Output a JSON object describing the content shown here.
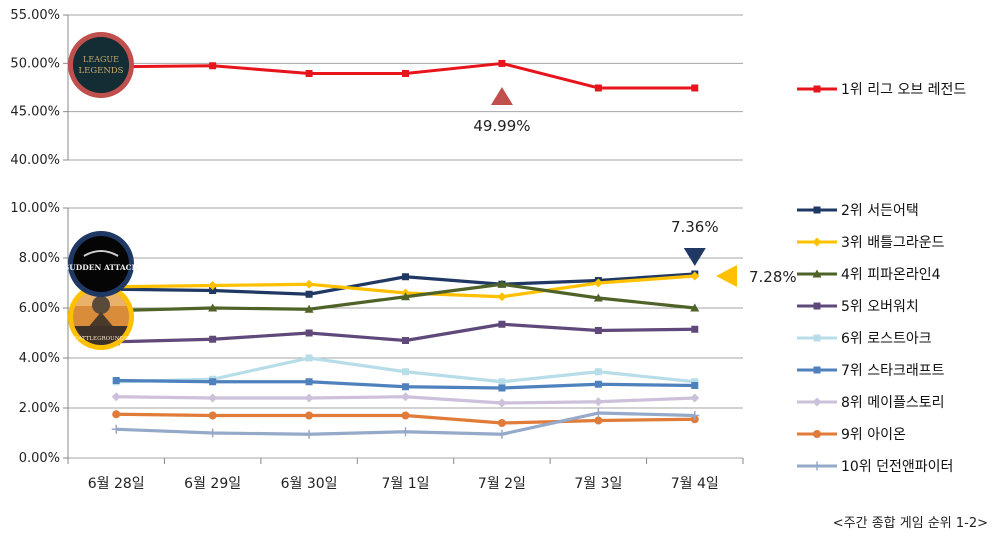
{
  "chart_data": [
    {
      "type": "line",
      "panel": "top",
      "categories": [
        "6월 28일",
        "6월 29일",
        "6월 30일",
        "7월 1일",
        "7월 2일",
        "7월 3일",
        "7월 4일"
      ],
      "ylim": [
        40,
        55
      ],
      "yticks": [
        "40.00%",
        "45.00%",
        "50.00%",
        "55.00%"
      ],
      "grid": true,
      "series": [
        {
          "name": "1위 리그 오브 레전드",
          "color": "#e8141b",
          "marker": "square",
          "values": [
            49.65,
            49.75,
            48.95,
            48.95,
            49.99,
            47.45,
            47.45
          ]
        }
      ],
      "annotation": {
        "label": "49.99%",
        "category_index": 4,
        "marker": "up-triangle",
        "color": "#c0504d"
      }
    },
    {
      "type": "line",
      "panel": "bottom",
      "categories": [
        "6월 28일",
        "6월 29일",
        "6월 30일",
        "7월 1일",
        "7월 2일",
        "7월 3일",
        "7월 4일"
      ],
      "ylim": [
        0,
        10
      ],
      "yticks": [
        "0.00%",
        "2.00%",
        "4.00%",
        "6.00%",
        "8.00%",
        "10.00%"
      ],
      "grid": true,
      "series": [
        {
          "name": "2위 서든어택",
          "color": "#1f3864",
          "marker": "square",
          "values": [
            6.75,
            6.7,
            6.55,
            7.25,
            6.95,
            7.1,
            7.36
          ]
        },
        {
          "name": "3위 배틀그라운드",
          "color": "#ffc000",
          "marker": "diamond",
          "values": [
            6.85,
            6.9,
            6.95,
            6.6,
            6.45,
            7.0,
            7.28
          ]
        },
        {
          "name": "4위 피파온라인4",
          "color": "#4f6228",
          "marker": "triangle",
          "values": [
            5.9,
            6.0,
            5.95,
            6.45,
            6.95,
            6.4,
            6.0
          ]
        },
        {
          "name": "5위 오버워치",
          "color": "#5f497a",
          "marker": "square",
          "values": [
            4.65,
            4.75,
            5.0,
            4.7,
            5.35,
            5.1,
            5.15
          ]
        },
        {
          "name": "6위 로스트아크",
          "color": "#b7dde8",
          "marker": "square",
          "values": [
            3.05,
            3.15,
            4.0,
            3.45,
            3.05,
            3.45,
            3.05
          ]
        },
        {
          "name": "7위 스타크래프트",
          "color": "#4f81bd",
          "marker": "square",
          "values": [
            3.1,
            3.05,
            3.05,
            2.85,
            2.8,
            2.95,
            2.9
          ]
        },
        {
          "name": "8위 메이플스토리",
          "color": "#ccc0da",
          "marker": "diamond",
          "values": [
            2.45,
            2.4,
            2.4,
            2.45,
            2.2,
            2.25,
            2.4
          ]
        },
        {
          "name": "9위 아이온",
          "color": "#e07b39",
          "marker": "circle",
          "values": [
            1.75,
            1.7,
            1.7,
            1.7,
            1.4,
            1.5,
            1.55
          ]
        },
        {
          "name": "10위 던전앤파이터",
          "color": "#95a9c9",
          "marker": "plus",
          "values": [
            1.15,
            1.0,
            0.95,
            1.05,
            0.95,
            1.8,
            1.7
          ]
        }
      ],
      "annotations": [
        {
          "label": "7.36%",
          "series_index": 0,
          "category_index": 6,
          "marker": "down-triangle",
          "color": "#1f3864"
        },
        {
          "label": "7.28%",
          "series_index": 1,
          "category_index": 6,
          "marker": "left-triangle",
          "color": "#ffc000"
        }
      ]
    }
  ],
  "logos": [
    {
      "name": "league-of-legends-logo",
      "text_line1": "LEAGUE",
      "text_line2": "LEGENDS",
      "ring_color": "#c0504d"
    },
    {
      "name": "sudden-attack-logo",
      "text": "SUDDEN ATTACK",
      "ring_color": "#1f3864"
    },
    {
      "name": "battlegrounds-logo",
      "text": "BATTLEGROUNDS",
      "ring_color": "#ffc000"
    }
  ],
  "caption": "<주간 종합 게임 순위 1-2>"
}
